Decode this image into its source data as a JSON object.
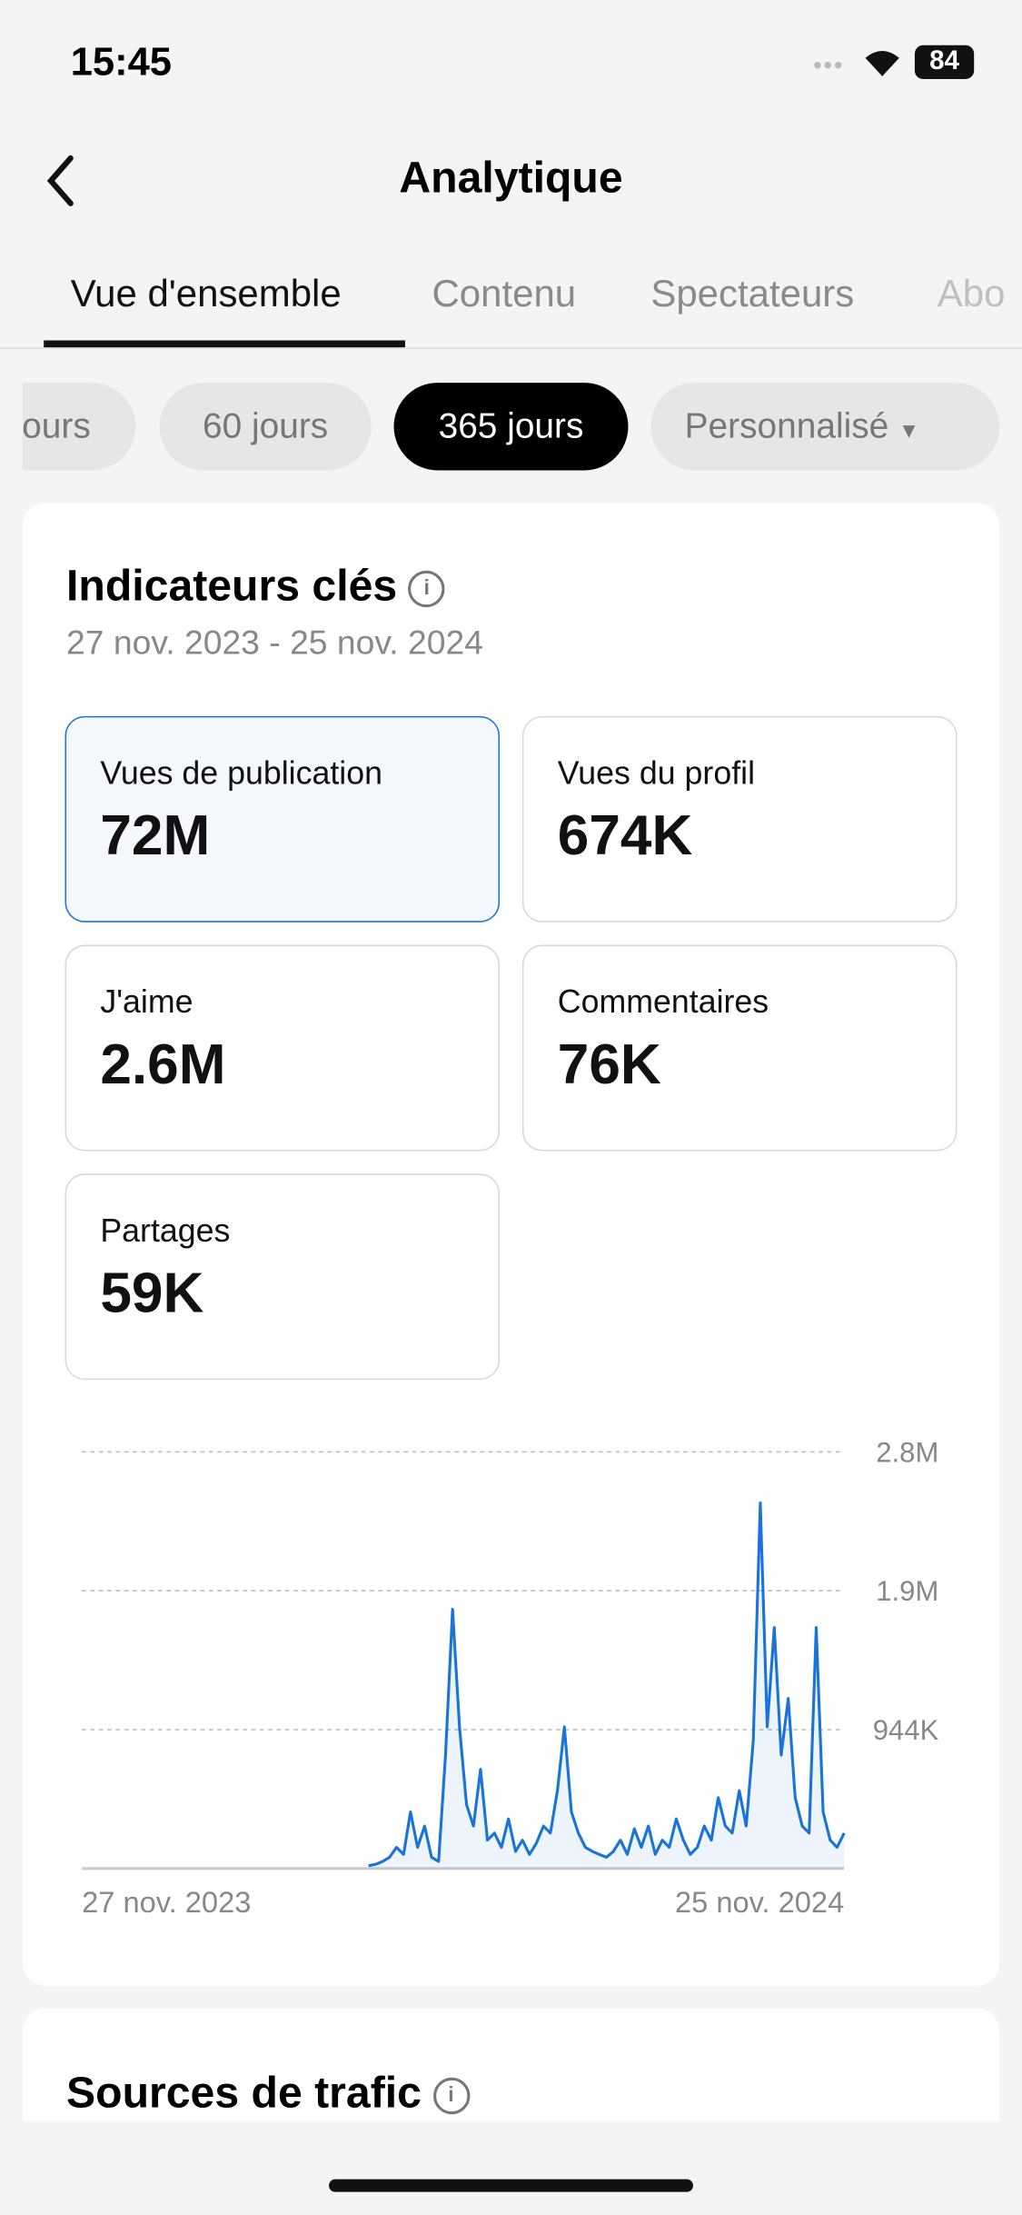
{
  "status": {
    "time": "15:45",
    "battery": "84"
  },
  "header": {
    "title": "Analytique"
  },
  "tabs": [
    "Vue d'ensemble",
    "Contenu",
    "Spectateurs",
    "Abo"
  ],
  "chips": [
    "jours",
    "60 jours",
    "365 jours",
    "Personnalisé"
  ],
  "card": {
    "title": "Indicateurs clés",
    "date_range": "27 nov. 2023 - 25 nov. 2024",
    "metrics": [
      {
        "label": "Vues de publication",
        "value": "72M"
      },
      {
        "label": "Vues du profil",
        "value": "674K"
      },
      {
        "label": "J'aime",
        "value": "2.6M"
      },
      {
        "label": "Commentaires",
        "value": "76K"
      },
      {
        "label": "Partages",
        "value": "59K"
      }
    ]
  },
  "chart_data": {
    "type": "line",
    "x_labels": [
      "27 nov. 2023",
      "25 nov. 2024"
    ],
    "series": [
      {
        "name": "Vues de publication",
        "color": "#1a73d9",
        "values": [
          null,
          null,
          null,
          null,
          null,
          null,
          null,
          null,
          null,
          null,
          null,
          null,
          null,
          null,
          null,
          null,
          null,
          null,
          null,
          null,
          null,
          null,
          null,
          null,
          null,
          null,
          null,
          null,
          null,
          null,
          null,
          null,
          null,
          null,
          null,
          null,
          null,
          null,
          null,
          null,
          null,
          19000,
          29000,
          48000,
          77000,
          144000,
          96000,
          385000,
          144000,
          289000,
          77000,
          48000,
          771000,
          1763000,
          963000,
          434000,
          289000,
          674000,
          193000,
          241000,
          144000,
          337000,
          116000,
          193000,
          96000,
          173000,
          289000,
          241000,
          530000,
          963000,
          385000,
          241000,
          144000,
          116000,
          96000,
          77000,
          116000,
          193000,
          96000,
          270000,
          144000,
          289000,
          96000,
          193000,
          144000,
          337000,
          193000,
          96000,
          144000,
          289000,
          193000,
          482000,
          289000,
          241000,
          530000,
          289000,
          867000,
          2485000,
          963000,
          1638000,
          771000,
          1156000,
          482000,
          289000,
          241000,
          1638000,
          385000,
          193000,
          144000,
          241000
        ]
      }
    ],
    "ylim": [
      0,
      2832000
    ],
    "yticks": [
      {
        "value": 944000,
        "label": "944K"
      },
      {
        "value": 1888000,
        "label": "1.9M"
      },
      {
        "value": 2832000,
        "label": "2.8M"
      }
    ],
    "grid": true
  },
  "section2": {
    "title": "Sources de trafic"
  }
}
